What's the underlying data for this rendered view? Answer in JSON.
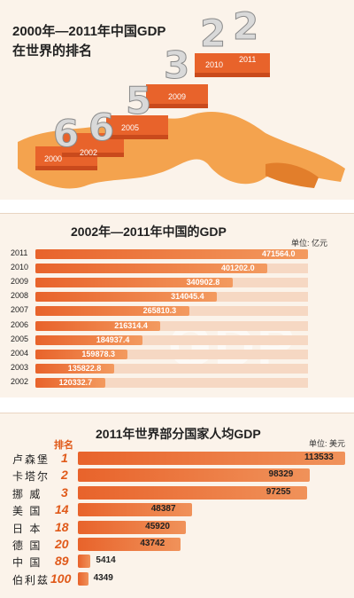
{
  "panel1": {
    "title_line1": "2000年—2011年中国GDP",
    "title_line2": "在世界的排名",
    "ranks": [
      {
        "rank": "6",
        "year": "2000"
      },
      {
        "rank": "6",
        "year": "2002"
      },
      {
        "rank": "5",
        "year": "2005"
      },
      {
        "rank": "3",
        "year": "2009"
      },
      {
        "rank": "2",
        "year": "2010"
      },
      {
        "rank": "2",
        "year": "2011"
      }
    ],
    "colors": {
      "block": "#e8632b",
      "numeral": "#d9d9d9",
      "map": "#f39a3d"
    }
  },
  "chart_data": [
    {
      "type": "bar",
      "orientation": "horizontal",
      "title": "2002年—2011年中国的GDP",
      "unit": "单位: 亿元",
      "categories": [
        "2011",
        "2010",
        "2009",
        "2008",
        "2007",
        "2006",
        "2005",
        "2004",
        "2003",
        "2002"
      ],
      "values": [
        471564.0,
        401202.0,
        340902.8,
        314045.4,
        265810.3,
        216314.4,
        184937.4,
        159878.3,
        135822.8,
        120332.7
      ],
      "value_labels": [
        "471564.0",
        "401202.0",
        "340902.8",
        "314045.4",
        "265810.3",
        "216314.4",
        "184937.4",
        "159878.3",
        "135822.8",
        "120332.7"
      ],
      "watermark": "GDP",
      "colors": {
        "bar": "#e8632b",
        "bar_light": "#f39a5f"
      }
    },
    {
      "type": "bar",
      "orientation": "horizontal",
      "title": "2011年世界部分国家人均GDP",
      "unit": "单位: 美元",
      "rank_header": "排名",
      "categories": [
        "卢森堡",
        "卡塔尔",
        "挪 威",
        "美 国",
        "日 本",
        "德 国",
        "中 国",
        "伯利兹"
      ],
      "ranks": [
        "1",
        "2",
        "3",
        "14",
        "18",
        "20",
        "89",
        "100"
      ],
      "values": [
        113533,
        98329,
        97255,
        48387,
        45920,
        43742,
        5414,
        4349
      ],
      "value_labels": [
        "113533",
        "98329",
        "97255",
        "48387",
        "45920",
        "43742",
        "5414",
        "4349"
      ],
      "colors": {
        "bar": "#e8632b",
        "label_dark": "#222222",
        "label_light": "#ffffff"
      }
    }
  ]
}
